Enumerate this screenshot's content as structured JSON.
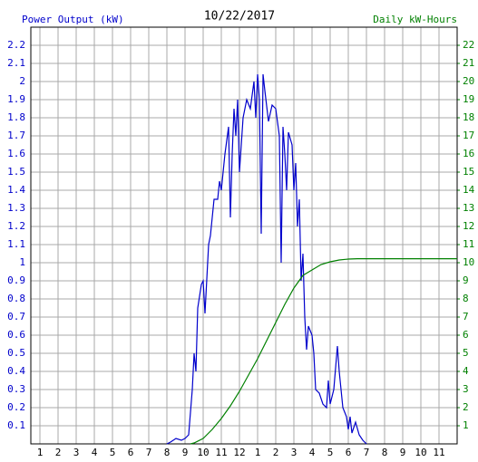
{
  "chart_data": {
    "type": "line",
    "title": "10/22/2017",
    "xlim": [
      0.5,
      24
    ],
    "ylim": [
      0,
      2.3
    ],
    "y2lim": [
      0,
      23
    ],
    "grid": true,
    "xticks": [
      1,
      2,
      3,
      4,
      5,
      6,
      7,
      8,
      9,
      10,
      11,
      12,
      {
        "value": 13,
        "label": "1"
      },
      {
        "value": 14,
        "label": "2"
      },
      {
        "value": 15,
        "label": "3"
      },
      {
        "value": 16,
        "label": "4"
      },
      {
        "value": 17,
        "label": "5"
      },
      {
        "value": 18,
        "label": "6"
      },
      {
        "value": 19,
        "label": "7"
      },
      {
        "value": 20,
        "label": "8"
      },
      {
        "value": 21,
        "label": "9"
      },
      {
        "value": 22,
        "label": "10"
      },
      {
        "value": 23,
        "label": "11"
      }
    ],
    "yticks": [
      0.1,
      0.2,
      0.3,
      0.4,
      0.5,
      0.6,
      0.7,
      0.8,
      0.9,
      1.0,
      1.1,
      1.2,
      1.3,
      1.4,
      1.5,
      1.6,
      1.7,
      1.8,
      1.9,
      2.0,
      2.1,
      2.2
    ],
    "y2ticks": [
      1,
      2,
      3,
      4,
      5,
      6,
      7,
      8,
      9,
      10,
      11,
      12,
      13,
      14,
      15,
      16,
      17,
      18,
      19,
      20,
      21,
      22
    ],
    "series": [
      {
        "name": "Power Output (kW)",
        "color": "#0000cc",
        "x": [
          8.0,
          8.2,
          8.5,
          8.8,
          9.0,
          9.2,
          9.4,
          9.5,
          9.6,
          9.7,
          9.9,
          10.0,
          10.1,
          10.3,
          10.4,
          10.6,
          10.8,
          10.9,
          11.0,
          11.2,
          11.4,
          11.5,
          11.6,
          11.7,
          11.8,
          11.9,
          12.0,
          12.2,
          12.4,
          12.6,
          12.8,
          12.9,
          13.0,
          13.1,
          13.2,
          13.3,
          13.4,
          13.6,
          13.8,
          14.0,
          14.2,
          14.3,
          14.4,
          14.5,
          14.6,
          14.7,
          14.9,
          15.0,
          15.1,
          15.2,
          15.3,
          15.4,
          15.5,
          15.6,
          15.7,
          15.8,
          16.0,
          16.1,
          16.2,
          16.4,
          16.6,
          16.8,
          16.9,
          17.0,
          17.2,
          17.4,
          17.5,
          17.7,
          17.9,
          18.0,
          18.1,
          18.2,
          18.4,
          18.6,
          18.8,
          19.0
        ],
        "values": [
          0.0,
          0.01,
          0.03,
          0.02,
          0.03,
          0.05,
          0.3,
          0.5,
          0.4,
          0.75,
          0.88,
          0.9,
          0.72,
          1.1,
          1.15,
          1.35,
          1.35,
          1.45,
          1.4,
          1.6,
          1.75,
          1.25,
          1.6,
          1.85,
          1.7,
          1.9,
          1.5,
          1.8,
          1.9,
          1.85,
          2.0,
          1.8,
          2.04,
          1.9,
          1.16,
          2.04,
          1.95,
          1.78,
          1.87,
          1.85,
          1.7,
          1.0,
          1.75,
          1.6,
          1.4,
          1.72,
          1.65,
          1.4,
          1.55,
          1.2,
          1.35,
          0.9,
          1.05,
          0.7,
          0.52,
          0.65,
          0.6,
          0.5,
          0.3,
          0.28,
          0.22,
          0.2,
          0.35,
          0.22,
          0.3,
          0.54,
          0.4,
          0.2,
          0.15,
          0.08,
          0.15,
          0.06,
          0.12,
          0.05,
          0.02,
          0.0
        ]
      },
      {
        "name": "Daily kW-Hours",
        "color": "#008000",
        "axis": "y2",
        "x": [
          9.3,
          9.5,
          10,
          10.5,
          11,
          11.5,
          12,
          12.5,
          13,
          13.5,
          14,
          14.5,
          15,
          15.5,
          16,
          16.5,
          17,
          17.5,
          18,
          18.5,
          19,
          24
        ],
        "values": [
          0,
          0.05,
          0.3,
          0.8,
          1.4,
          2.1,
          2.9,
          3.8,
          4.7,
          5.7,
          6.7,
          7.7,
          8.6,
          9.3,
          9.6,
          9.9,
          10.05,
          10.15,
          10.2,
          10.22,
          10.22,
          10.22
        ]
      }
    ]
  }
}
